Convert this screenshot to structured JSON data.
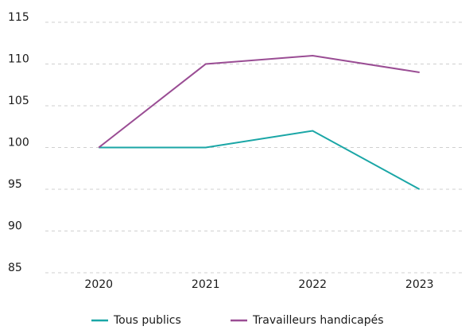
{
  "chart_data": {
    "type": "line",
    "categories": [
      "2020",
      "2021",
      "2022",
      "2023"
    ],
    "series": [
      {
        "name": "Tous publics",
        "color": "#1aa6a6",
        "values": [
          100,
          100,
          102,
          95
        ]
      },
      {
        "name": "Travailleurs handicapés",
        "color": "#9a4d94",
        "values": [
          100,
          110,
          111,
          109
        ]
      }
    ],
    "ylim": [
      85,
      115
    ],
    "yticks": [
      85,
      90,
      95,
      100,
      105,
      110,
      115
    ],
    "grid": true,
    "legend": "bottom"
  }
}
